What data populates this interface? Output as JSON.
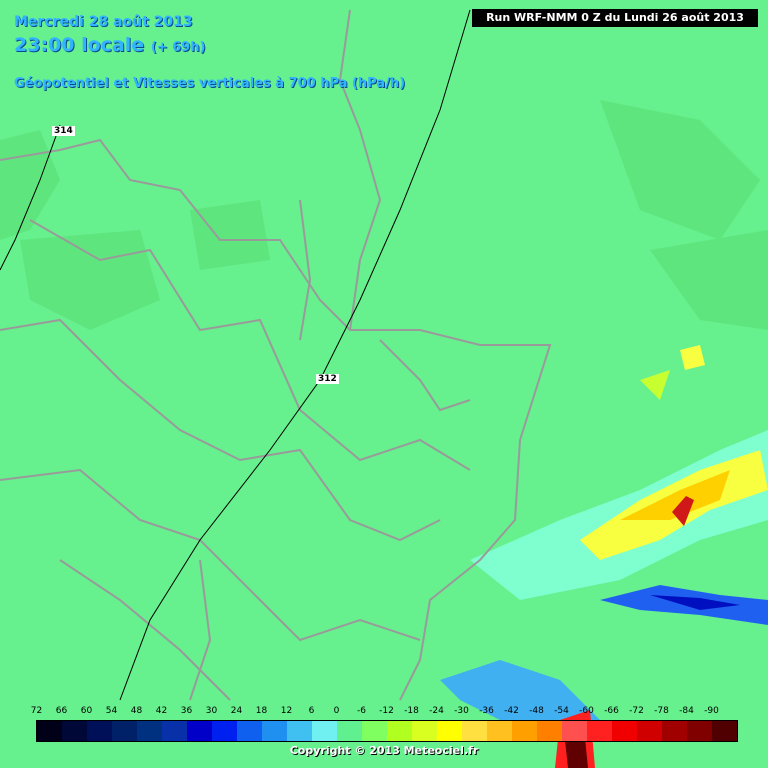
{
  "header": {
    "date": "Mercredi 28 août 2013",
    "time": "23:00 locale",
    "lead": "(+ 69h)",
    "field": "Géopotentiel et Vitesses verticales à 700 hPa (hPa/h)",
    "run": "Run WRF-NMM 0 Z du Lundi 26 août 2013"
  },
  "contours": [
    {
      "label": "314"
    },
    {
      "label": "312"
    }
  ],
  "legend": {
    "labels": [
      "72",
      "66",
      "60",
      "54",
      "48",
      "42",
      "36",
      "30",
      "24",
      "18",
      "12",
      "6",
      "0",
      "-6",
      "-12",
      "-18",
      "-24",
      "-30",
      "-36",
      "-42",
      "-48",
      "-54",
      "-60",
      "-66",
      "-72",
      "-78",
      "-84",
      "-90"
    ],
    "colors": [
      "#000018",
      "#000838",
      "#001058",
      "#002068",
      "#003080",
      "#0830a8",
      "#0000c8",
      "#0020f0",
      "#1060f0",
      "#2090f0",
      "#40c0f0",
      "#70f0f0",
      "#60f090",
      "#80ff60",
      "#b0ff20",
      "#d8ff20",
      "#ffff00",
      "#ffe040",
      "#ffc020",
      "#ffa000",
      "#ff8000",
      "#ff5050",
      "#ff2020",
      "#f00000",
      "#d00000",
      "#a00000",
      "#800000",
      "#500000"
    ]
  },
  "footer": {
    "copyright": "Copyright © 2013 Meteociel.fr"
  }
}
